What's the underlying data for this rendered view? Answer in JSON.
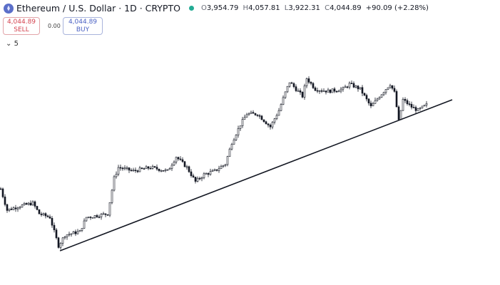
{
  "header": {
    "symbol": "Ethereum / U.S. Dollar · 1D · CRYPTO",
    "open_label": "O",
    "open": "3,954.79",
    "high_label": "H",
    "high": "4,057.81",
    "low_label": "L",
    "low": "3,922.31",
    "close_label": "C",
    "close": "4,044.89",
    "change": "+90.09 (+2.28%)",
    "status_color": "#22ab94"
  },
  "trade": {
    "sell_price": "4,044.89",
    "sell_label": "SELL",
    "spread": "0.00",
    "buy_price": "4,044.89",
    "buy_label": "BUY"
  },
  "indicators_toggle": {
    "icon": "chevron-down-icon",
    "count": "5"
  },
  "chart_data": {
    "type": "candlestick",
    "colors": {
      "candles": "#131722",
      "trendline": "#131722"
    },
    "grid": false,
    "close_keypoints": [
      {
        "bar": 0,
        "close": 2629
      },
      {
        "bar": 3,
        "close": 2269
      },
      {
        "bar": 8,
        "close": 2329
      },
      {
        "bar": 15,
        "close": 2389
      },
      {
        "bar": 18,
        "close": 2209
      },
      {
        "bar": 23,
        "close": 2149
      },
      {
        "bar": 27,
        "close": 1669
      },
      {
        "bar": 30,
        "close": 1849
      },
      {
        "bar": 37,
        "close": 1909
      },
      {
        "bar": 40,
        "close": 2149
      },
      {
        "bar": 50,
        "close": 2209
      },
      {
        "bar": 53,
        "close": 2809
      },
      {
        "bar": 55,
        "close": 2989
      },
      {
        "bar": 62,
        "close": 2929
      },
      {
        "bar": 70,
        "close": 2989
      },
      {
        "bar": 78,
        "close": 2929
      },
      {
        "bar": 82,
        "close": 3169
      },
      {
        "bar": 87,
        "close": 2989
      },
      {
        "bar": 91,
        "close": 2749
      },
      {
        "bar": 95,
        "close": 2869
      },
      {
        "bar": 100,
        "close": 2929
      },
      {
        "bar": 105,
        "close": 3049
      },
      {
        "bar": 108,
        "close": 3409
      },
      {
        "bar": 112,
        "close": 3709
      },
      {
        "bar": 115,
        "close": 3889
      },
      {
        "bar": 120,
        "close": 3889
      },
      {
        "bar": 126,
        "close": 3673
      },
      {
        "bar": 130,
        "close": 3949
      },
      {
        "bar": 133,
        "close": 4249
      },
      {
        "bar": 135,
        "close": 4429
      },
      {
        "bar": 138,
        "close": 4309
      },
      {
        "bar": 141,
        "close": 4189
      },
      {
        "bar": 143,
        "close": 4489
      },
      {
        "bar": 147,
        "close": 4309
      },
      {
        "bar": 153,
        "close": 4273
      },
      {
        "bar": 160,
        "close": 4309
      },
      {
        "bar": 163,
        "close": 4393
      },
      {
        "bar": 168,
        "close": 4309
      },
      {
        "bar": 173,
        "close": 4009
      },
      {
        "bar": 177,
        "close": 4189
      },
      {
        "bar": 182,
        "close": 4393
      },
      {
        "bar": 184,
        "close": 4249
      },
      {
        "bar": 186,
        "close": 3769
      },
      {
        "bar": 188,
        "close": 4129
      },
      {
        "bar": 192,
        "close": 4009
      },
      {
        "bar": 195,
        "close": 3949
      },
      {
        "bar": 199,
        "close": 4045
      }
    ],
    "trendline": {
      "start": {
        "bar": 27.7,
        "price": 1585
      },
      "end": {
        "bar": 211,
        "price": 4129
      }
    }
  }
}
